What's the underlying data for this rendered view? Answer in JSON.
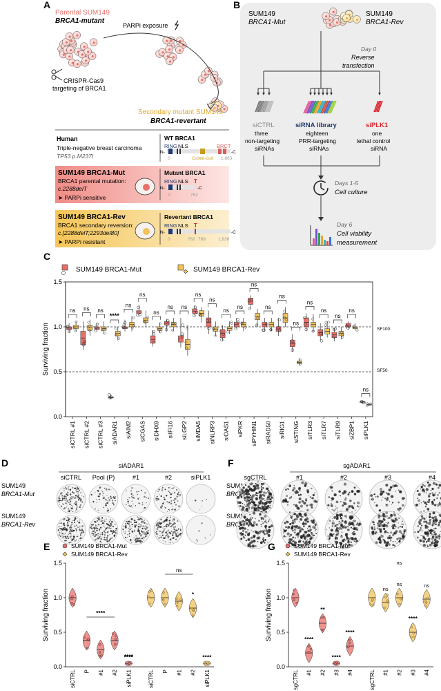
{
  "panel_a": {
    "label": "A",
    "parental_title": "Parental SUM149",
    "parental_sub": "BRCA1-mutant",
    "parpi_exposure": "PARPi exposure",
    "crispr_1": "CRISPR-Cas9",
    "crispr_2": "targeting of BRCA1",
    "secondary_title": "Secondary mutant SUM149",
    "secondary_sub": "BRCA1-revertant",
    "human_title": "Human",
    "human_l1": "Triple-negative breast carcinoma",
    "human_l2": "TP53 p.M237I",
    "wt_title": "WT BRCA1",
    "wt_ring": "RING",
    "wt_nls": "NLS",
    "wt_brct": "BRCT",
    "wt_coiled": "Coiled-coil",
    "wt_n": "N-",
    "wt_c": "-C",
    "wt_start": "0",
    "wt_end": "1,863",
    "mut_title": "SUM149 BRCA1-Mut",
    "mut_l1": "BRCA1 parental mutation:",
    "mut_l2": "c.2288delT",
    "mut_l3": "PARPi sensitive",
    "mut_prot_title": "Mutant BRCA1",
    "mut_ring": "RING",
    "mut_nls": "NLS",
    "mut_t": "T",
    "mut_n": "N-",
    "mut_c": "-C",
    "mut_start": "0",
    "mut_end": "762",
    "rev_title": "SUM149 BRCA1-Rev",
    "rev_l1": "BRCA1 secondary reversion:",
    "rev_l2": "c.[2288delT;2293del80]",
    "rev_l3": "PARPi resistant",
    "rev_prot_title": "Revertant BRCA1",
    "rev_ring": "RING",
    "rev_nls": "NLS",
    "rev_t": "T",
    "rev_n": "N-",
    "rev_c": "-C",
    "rev_start": "0",
    "rev_mid1": "762",
    "rev_mid2": "789",
    "rev_end": "1,836"
  },
  "panel_b": {
    "label": "B",
    "mut_1": "SUM149",
    "mut_2": "BRCA1-Mut",
    "rev_1": "SUM149",
    "rev_2": "BRCA1-Rev",
    "day0_1": "Day 0",
    "day0_2": "Reverse",
    "day0_3": "transfection",
    "sictrl_1": "siCTRL",
    "sictrl_2": "three",
    "sictrl_3": "non-targeting",
    "sictrl_4": "siRNAs",
    "lib_1": "siRNA library",
    "lib_2": "eighteen",
    "lib_3": "PRR-targeting",
    "lib_4": "siRNAs",
    "plk_1": "siPLK1",
    "plk_2": "one",
    "plk_3": "lethal control",
    "plk_4": "siRNA",
    "days15_1": "Days 1-5",
    "days15_2": "Cell culture",
    "day6_1": "Day 6",
    "day6_2": "Cell viability",
    "day6_3": "measurement"
  },
  "panel_c": {
    "label": "C",
    "legend_mut": "SUM149 BRCA1-Mut",
    "legend_rev": "SUM149 BRCA1-Rev",
    "sf100": "SF100",
    "sf50": "SF50"
  },
  "panel_d": {
    "label": "D",
    "group": "siADAR1",
    "cols": [
      "siCTRL",
      "Pool (P)",
      "#1",
      "#2",
      "siPLK1"
    ],
    "row1_1": "SUM149",
    "row1_2": "BRCA1-Mut",
    "row2_1": "SUM149",
    "row2_2": "BRCA1-Rev"
  },
  "panel_f": {
    "label": "F",
    "group": "sgADAR1",
    "cols": [
      "sgCTRL",
      "#1",
      "#2",
      "#3",
      "#4"
    ],
    "row1_1": "SUM149",
    "row1_2": "BRCA1-Mut",
    "row2_1": "SUM149",
    "row2_2": "BRCA1-Rev"
  },
  "panel_e": {
    "label": "E",
    "legend_mut": "SUM149 BRCA1-Mut",
    "legend_rev": "SUM149 BRCA1-Rev",
    "group_label": "siADAR1",
    "ns": "ns",
    "star1": "****",
    "star2": "****",
    "star3": "*",
    "star4": "****"
  },
  "panel_g": {
    "label": "G",
    "legend_mut": "SUM149 BRCA1-Mut",
    "legend_rev": "SUM149 BRCA1-Rev",
    "group_label": "sgADAR1",
    "stars_mut": [
      "****",
      "**",
      "****",
      "****"
    ],
    "stars_rev": [
      "ns",
      "ns",
      "****",
      "ns"
    ],
    "ns_top": "ns"
  },
  "colors": {
    "mut": "#e8706b",
    "rev": "#f2c15a",
    "navy": "#1f3a6e",
    "plk": "#d9262e",
    "grey": "#888888"
  },
  "chart_data": [
    {
      "type": "box",
      "id": "panel-c",
      "ylabel": "Surviving fraction",
      "ylim": [
        0,
        1.5
      ],
      "yticks": [
        0.0,
        0.5,
        1.0,
        1.5
      ],
      "reference_lines": [
        {
          "y": 1.0,
          "label": "SF100"
        },
        {
          "y": 0.5,
          "label": "SF50"
        }
      ],
      "categories": [
        "siCTRL #1",
        "siCTRL #2",
        "siCTRL #3",
        "siADAR1",
        "siAIM2",
        "siCGAS",
        "siDHX9",
        "siIFI16",
        "siLGP2",
        "siMDA5",
        "siNLRP3",
        "siOAS1",
        "siPKR",
        "siPYHIN1",
        "siRAD50",
        "siRIG1",
        "siSTING",
        "siTLR3",
        "siTLR7",
        "siTLR9",
        "siZBP1",
        "siPLK1"
      ],
      "significance": [
        "ns",
        "ns",
        "ns",
        "****",
        "ns",
        "ns",
        "ns",
        "ns",
        "ns",
        "ns",
        "ns",
        "ns",
        "ns",
        "ns",
        "ns",
        "ns",
        "ns",
        "ns",
        "ns",
        "ns",
        "ns",
        "ns"
      ],
      "series": [
        {
          "name": "SUM149 BRCA1-Mut",
          "boxes": [
            [
              0.93,
              0.97,
              1.0,
              1.04
            ],
            [
              0.74,
              0.8,
              0.95,
              1.06
            ],
            [
              0.95,
              0.97,
              1.0,
              1.04
            ],
            [
              0.19,
              0.21,
              0.22,
              0.25
            ],
            [
              0.95,
              0.98,
              1.0,
              1.08
            ],
            [
              1.12,
              1.15,
              1.18,
              1.24
            ],
            [
              0.78,
              0.82,
              0.9,
              0.96
            ],
            [
              0.95,
              1.02,
              1.06,
              1.09
            ],
            [
              0.77,
              0.83,
              0.9,
              1.1
            ],
            [
              1.12,
              1.15,
              1.2,
              1.24
            ],
            [
              0.92,
              1.0,
              1.1,
              1.18
            ],
            [
              0.84,
              0.88,
              0.97,
              1.02
            ],
            [
              0.98,
              1.0,
              1.05,
              1.1
            ],
            [
              1.2,
              1.25,
              1.32,
              1.35
            ],
            [
              0.95,
              1.0,
              1.05,
              1.1
            ],
            [
              0.9,
              0.95,
              1.0,
              1.1
            ],
            [
              0.72,
              0.78,
              0.85,
              0.92
            ],
            [
              0.95,
              1.0,
              1.1,
              1.15
            ],
            [
              0.84,
              0.9,
              0.97,
              1.04
            ],
            [
              0.84,
              0.88,
              0.94,
              0.99
            ],
            [
              0.98,
              1.0,
              1.04,
              1.06
            ],
            [
              0.15,
              0.16,
              0.17,
              0.18
            ]
          ]
        },
        {
          "name": "SUM149 BRCA1-Rev",
          "boxes": [
            [
              0.95,
              0.98,
              1.02,
              1.06
            ],
            [
              0.9,
              0.96,
              1.02,
              1.08
            ],
            [
              0.92,
              0.96,
              1.0,
              1.06
            ],
            [
              0.85,
              0.9,
              0.95,
              1.0
            ],
            [
              0.95,
              1.0,
              1.05,
              1.12
            ],
            [
              1.0,
              1.05,
              1.1,
              1.18
            ],
            [
              0.93,
              0.96,
              1.0,
              1.04
            ],
            [
              0.95,
              1.0,
              1.05,
              1.1
            ],
            [
              0.68,
              0.75,
              0.86,
              1.02
            ],
            [
              1.05,
              1.12,
              1.18,
              1.22
            ],
            [
              0.9,
              0.95,
              1.0,
              1.06
            ],
            [
              0.92,
              0.96,
              1.0,
              1.06
            ],
            [
              0.95,
              1.0,
              1.05,
              1.1
            ],
            [
              1.0,
              1.08,
              1.15,
              1.2
            ],
            [
              0.95,
              1.0,
              1.05,
              1.1
            ],
            [
              1.0,
              1.05,
              1.15,
              1.22
            ],
            [
              0.57,
              0.59,
              0.62,
              0.65
            ],
            [
              0.95,
              1.0,
              1.05,
              1.14
            ],
            [
              0.88,
              0.92,
              0.98,
              1.06
            ],
            [
              0.86,
              0.9,
              0.95,
              1.0
            ],
            [
              0.96,
              0.98,
              1.0,
              1.04
            ],
            [
              0.12,
              0.13,
              0.14,
              0.15
            ]
          ]
        }
      ]
    },
    {
      "type": "violin",
      "id": "panel-e",
      "ylabel": "Surviving fraction",
      "ylim": [
        0,
        1.5
      ],
      "yticks": [
        0.0,
        0.5,
        1.0,
        1.5
      ],
      "categories": [
        "siCTRL",
        "P",
        "#1",
        "#2",
        "siPLK1",
        "siCTRL",
        "P",
        "#1",
        "#2",
        "siPLK1"
      ],
      "series": [
        {
          "name": "SUM149 BRCA1-Mut",
          "medians": [
            1.0,
            0.38,
            0.25,
            0.38,
            0.05
          ]
        },
        {
          "name": "SUM149 BRCA1-Rev",
          "medians": [
            1.0,
            1.0,
            0.95,
            0.85,
            0.05
          ]
        }
      ]
    },
    {
      "type": "violin",
      "id": "panel-g",
      "ylabel": "Surviving fraction",
      "ylim": [
        0,
        1.5
      ],
      "yticks": [
        0.0,
        0.5,
        1.0,
        1.5
      ],
      "categories": [
        "sgCTRL",
        "#1",
        "#2",
        "#3",
        "#4",
        "sgCTRL",
        "#1",
        "#2",
        "#3",
        "#4"
      ],
      "series": [
        {
          "name": "SUM149 BRCA1-Mut",
          "medians": [
            1.0,
            0.2,
            0.63,
            0.05,
            0.3
          ]
        },
        {
          "name": "SUM149 BRCA1-Rev",
          "medians": [
            1.0,
            0.93,
            1.0,
            0.5,
            0.98
          ]
        }
      ]
    }
  ]
}
